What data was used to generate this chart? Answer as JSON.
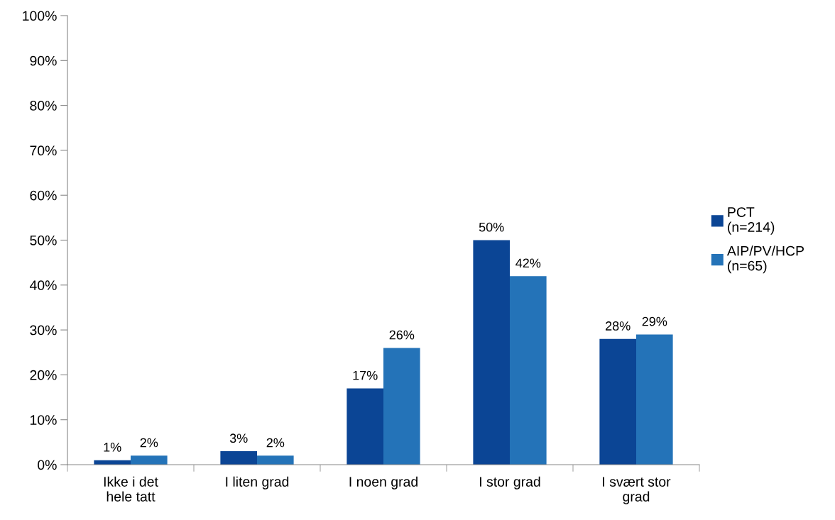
{
  "chart_data": {
    "type": "bar",
    "categories": [
      "Ikke i det\nhele tatt",
      "I liten grad",
      "I noen grad",
      "I stor grad",
      "I svært stor\ngrad"
    ],
    "series": [
      {
        "name": "PCT\n(n=214)",
        "color": "#0b4595",
        "values": [
          1,
          3,
          17,
          50,
          28
        ],
        "value_labels": [
          "1%",
          "3%",
          "17%",
          "50%",
          "28%"
        ]
      },
      {
        "name": "AIP/PV/HCP\n(n=65)",
        "color": "#2473b8",
        "values": [
          2,
          2,
          26,
          42,
          29
        ],
        "value_labels": [
          "2%",
          "2%",
          "26%",
          "42%",
          "29%"
        ]
      }
    ],
    "ylim": [
      0,
      100
    ],
    "yticks": [
      {
        "value": 0,
        "label": "0%"
      },
      {
        "value": 10,
        "label": "10%"
      },
      {
        "value": 20,
        "label": "20%"
      },
      {
        "value": 30,
        "label": "30%"
      },
      {
        "value": 40,
        "label": "40%"
      },
      {
        "value": 50,
        "label": "50%"
      },
      {
        "value": 60,
        "label": "60%"
      },
      {
        "value": 70,
        "label": "70%"
      },
      {
        "value": 80,
        "label": "80%"
      },
      {
        "value": 90,
        "label": "90%"
      },
      {
        "value": 100,
        "label": "100%"
      }
    ],
    "grid": false,
    "legend": "right"
  }
}
